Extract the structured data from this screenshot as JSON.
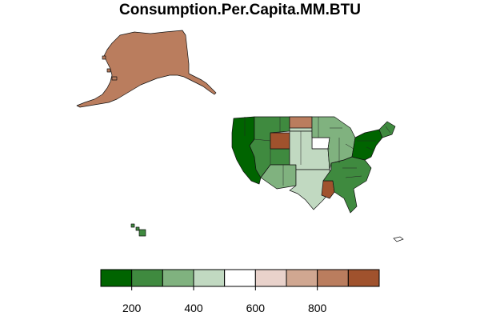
{
  "title": "Consumption.Per.Capita.MM.BTU",
  "legend": {
    "bins": [
      {
        "from": 100,
        "to": 200,
        "color": "#006400"
      },
      {
        "from": 200,
        "to": 300,
        "color": "#3f8a3f"
      },
      {
        "from": 300,
        "to": 400,
        "color": "#80b27f"
      },
      {
        "from": 400,
        "to": 500,
        "color": "#c1d9c1"
      },
      {
        "from": 500,
        "to": 600,
        "color": "#ffffff"
      },
      {
        "from": 600,
        "to": 700,
        "color": "#e9d2cb"
      },
      {
        "from": 700,
        "to": 800,
        "color": "#d0a791"
      },
      {
        "from": 800,
        "to": 900,
        "color": "#ba7d5e"
      },
      {
        "from": 900,
        "to": 1000,
        "color": "#a0522d"
      }
    ],
    "ticks": [
      {
        "value": 200,
        "label": "200"
      },
      {
        "value": 400,
        "label": "400"
      },
      {
        "value": 600,
        "label": "600"
      },
      {
        "value": 800,
        "label": "800"
      }
    ]
  },
  "regions": [
    {
      "id": "alaska",
      "color": "#ba7d5e"
    },
    {
      "id": "hawaii",
      "color": "#3f8a3f"
    },
    {
      "id": "west-coast",
      "color": "#006400"
    },
    {
      "id": "mountain-west",
      "color": "#3f8a3f"
    },
    {
      "id": "southwest",
      "color": "#80b27f"
    },
    {
      "id": "northern-plains",
      "color": "#c1d9c1"
    },
    {
      "id": "north-dakota",
      "color": "#ba7d5e"
    },
    {
      "id": "wyoming",
      "color": "#a0522d"
    },
    {
      "id": "south-dakota",
      "color": "#ffffff"
    },
    {
      "id": "central-plains",
      "color": "#c1d9c1"
    },
    {
      "id": "texas",
      "color": "#c1d9c1"
    },
    {
      "id": "louisiana",
      "color": "#a0522d"
    },
    {
      "id": "midwest",
      "color": "#80b27f"
    },
    {
      "id": "southeast",
      "color": "#3f8a3f"
    },
    {
      "id": "northeast",
      "color": "#006400"
    },
    {
      "id": "new-england",
      "color": "#3f8a3f"
    }
  ]
}
